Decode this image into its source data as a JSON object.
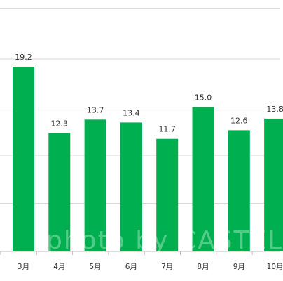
{
  "chart_data": {
    "type": "bar",
    "categories": [
      "3月",
      "4月",
      "5月",
      "6月",
      "7月",
      "8月",
      "9月",
      "10月"
    ],
    "values": [
      19.2,
      12.3,
      13.7,
      13.4,
      11.7,
      15.0,
      12.6,
      13.8
    ],
    "value_labels": [
      "19.2",
      "12.3",
      "13.7",
      "13.4",
      "11.7",
      "15.0",
      "12.6",
      "13.8"
    ],
    "ylim": [
      0,
      25
    ],
    "grid": true,
    "bar_color": "#00b050",
    "grid_color": "#d9d9d9",
    "axis_color": "#bfbfbf"
  },
  "watermark": "photo by CASTEL"
}
